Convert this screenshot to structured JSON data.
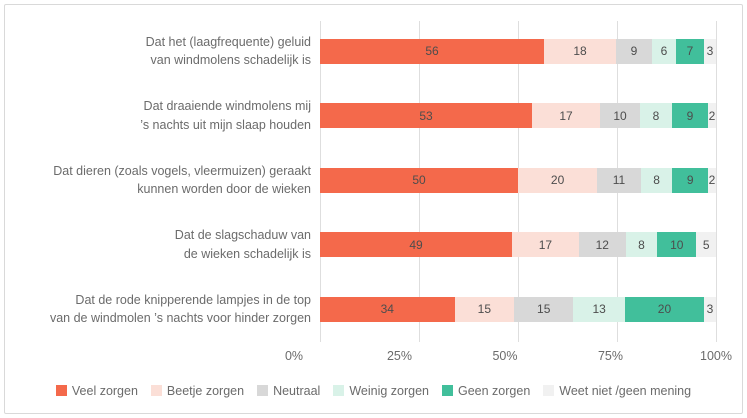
{
  "chart_data": {
    "type": "bar",
    "orientation": "horizontal",
    "stacked": true,
    "title": "",
    "xlabel": "",
    "ylabel": "",
    "xlim": [
      0,
      100
    ],
    "grid": true,
    "legend_position": "bottom",
    "x_ticks": [
      "0%",
      "25%",
      "50%",
      "75%",
      "100%"
    ],
    "x_tick_positions": [
      0,
      25,
      50,
      75,
      100
    ],
    "categories": [
      "Dat het (laagfrequente) geluid\nvan windmolens schadelijk is",
      "Dat draaiende windmolens mij\n’s nachts uit mijn slaap houden",
      "Dat dieren (zoals vogels, vleermuizen) geraakt\nkunnen worden door de wieken",
      "Dat de slagschaduw van\nde wieken schadelijk is",
      "Dat de rode knipperende lampjes in de top\nvan de windmolen ’s nachts voor hinder zorgen"
    ],
    "series": [
      {
        "name": "Veel  zorgen",
        "color": "#f4694b",
        "values": [
          56,
          53,
          50,
          49,
          34
        ]
      },
      {
        "name": "Beetje zorgen",
        "color": "#fbdfd7",
        "values": [
          18,
          17,
          20,
          17,
          15
        ]
      },
      {
        "name": "Neutraal",
        "color": "#d8d8d8",
        "values": [
          9,
          10,
          11,
          12,
          15
        ]
      },
      {
        "name": "Weinig zorgen",
        "color": "#d9f2e8",
        "values": [
          6,
          8,
          8,
          8,
          13
        ]
      },
      {
        "name": "Geen zorgen",
        "color": "#41bf9b",
        "values": [
          7,
          9,
          9,
          10,
          20
        ]
      },
      {
        "name": "Weet niet /geen mening",
        "color": "#f1f1f1",
        "values": [
          3,
          2,
          2,
          5,
          3
        ]
      }
    ],
    "colors": {
      "grid": "#dedede",
      "category_text": "#6b6b6b",
      "value_text": "#4d4d4d",
      "border": "#d9d9d9"
    }
  }
}
